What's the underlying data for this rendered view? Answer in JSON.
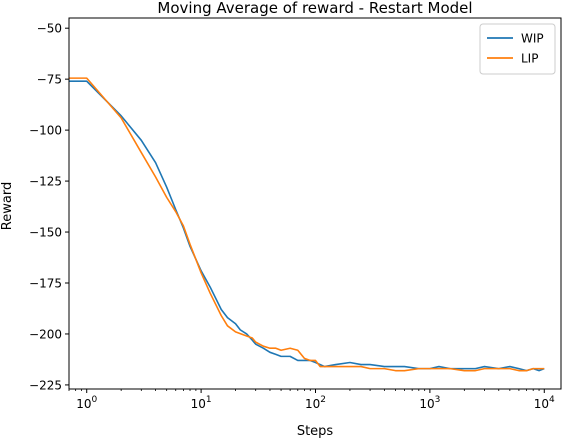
{
  "chart_data": {
    "type": "line",
    "title": "Moving Average of reward - Restart Model",
    "xlabel": "Steps",
    "ylabel": "Reward",
    "x_scale": "log",
    "xlim": [
      0.7,
      14000
    ],
    "ylim": [
      -227,
      -45
    ],
    "x_ticks": [
      {
        "value": 1,
        "base": "10",
        "exp": "0"
      },
      {
        "value": 10,
        "base": "10",
        "exp": "1"
      },
      {
        "value": 100,
        "base": "10",
        "exp": "2"
      },
      {
        "value": 1000,
        "base": "10",
        "exp": "3"
      },
      {
        "value": 10000,
        "base": "10",
        "exp": "4"
      }
    ],
    "y_ticks": [
      {
        "value": -50,
        "label": "−50"
      },
      {
        "value": -75,
        "label": "−75"
      },
      {
        "value": -100,
        "label": "−100"
      },
      {
        "value": -125,
        "label": "−125"
      },
      {
        "value": -150,
        "label": "−150"
      },
      {
        "value": -175,
        "label": "−175"
      },
      {
        "value": -200,
        "label": "−200"
      },
      {
        "value": -225,
        "label": "−225"
      }
    ],
    "grid": false,
    "legend_position": "top-right",
    "series": [
      {
        "name": "WIP",
        "color": "#1f77b4",
        "points": [
          [
            0.7,
            -76
          ],
          [
            1,
            -76
          ],
          [
            2,
            -93
          ],
          [
            3,
            -105
          ],
          [
            4,
            -116
          ],
          [
            5,
            -128
          ],
          [
            6,
            -139
          ],
          [
            7,
            -148
          ],
          [
            8,
            -157
          ],
          [
            10,
            -169
          ],
          [
            12,
            -177
          ],
          [
            15,
            -188
          ],
          [
            17,
            -192
          ],
          [
            20,
            -195
          ],
          [
            22,
            -198
          ],
          [
            25,
            -200
          ],
          [
            28,
            -203
          ],
          [
            30,
            -205
          ],
          [
            35,
            -207
          ],
          [
            40,
            -209
          ],
          [
            45,
            -210
          ],
          [
            50,
            -211
          ],
          [
            60,
            -211
          ],
          [
            70,
            -213
          ],
          [
            80,
            -213
          ],
          [
            90,
            -213
          ],
          [
            100,
            -214
          ],
          [
            120,
            -216
          ],
          [
            150,
            -215
          ],
          [
            200,
            -214
          ],
          [
            250,
            -215
          ],
          [
            300,
            -215
          ],
          [
            400,
            -216
          ],
          [
            500,
            -216
          ],
          [
            600,
            -216
          ],
          [
            800,
            -217
          ],
          [
            1000,
            -217
          ],
          [
            1200,
            -216
          ],
          [
            1500,
            -217
          ],
          [
            2000,
            -217
          ],
          [
            2500,
            -217
          ],
          [
            3000,
            -216
          ],
          [
            4000,
            -217
          ],
          [
            5000,
            -216
          ],
          [
            6000,
            -217
          ],
          [
            7000,
            -218
          ],
          [
            8000,
            -217
          ],
          [
            9000,
            -218
          ],
          [
            10000,
            -217
          ]
        ]
      },
      {
        "name": "LIP",
        "color": "#ff7f0e",
        "points": [
          [
            0.7,
            -74.5
          ],
          [
            1,
            -74.5
          ],
          [
            2,
            -94
          ],
          [
            3,
            -111
          ],
          [
            4,
            -123
          ],
          [
            5,
            -133
          ],
          [
            6,
            -140
          ],
          [
            7,
            -147
          ],
          [
            8,
            -156
          ],
          [
            10,
            -170
          ],
          [
            12,
            -180
          ],
          [
            15,
            -191
          ],
          [
            17,
            -196
          ],
          [
            20,
            -199
          ],
          [
            25,
            -201
          ],
          [
            28,
            -202
          ],
          [
            30,
            -204
          ],
          [
            35,
            -206
          ],
          [
            40,
            -207
          ],
          [
            45,
            -207
          ],
          [
            50,
            -208
          ],
          [
            60,
            -207
          ],
          [
            70,
            -208
          ],
          [
            80,
            -212
          ],
          [
            90,
            -213
          ],
          [
            100,
            -213
          ],
          [
            110,
            -216
          ],
          [
            150,
            -216
          ],
          [
            200,
            -216
          ],
          [
            250,
            -216
          ],
          [
            300,
            -217
          ],
          [
            400,
            -217
          ],
          [
            500,
            -218
          ],
          [
            600,
            -218
          ],
          [
            800,
            -217
          ],
          [
            1000,
            -217
          ],
          [
            1500,
            -217
          ],
          [
            2000,
            -218
          ],
          [
            2500,
            -218
          ],
          [
            3000,
            -217
          ],
          [
            4000,
            -217
          ],
          [
            5000,
            -217
          ],
          [
            6000,
            -218
          ],
          [
            7000,
            -218
          ],
          [
            8000,
            -217
          ],
          [
            9000,
            -217
          ],
          [
            10000,
            -217
          ]
        ]
      }
    ]
  }
}
